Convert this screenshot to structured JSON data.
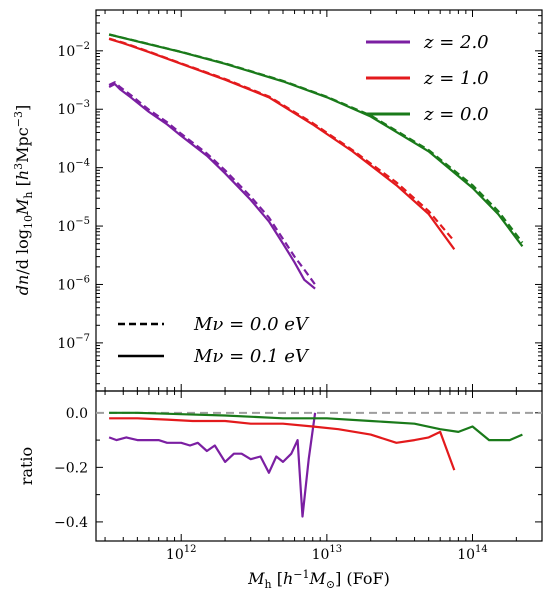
{
  "chart_data": [
    {
      "type": "line",
      "panel": "top",
      "ylabel": "dn/dlog10Mh [h^3Mpc^-3]",
      "xlabel": "",
      "xscale": "log",
      "yscale": "log",
      "xlim": [
        260000000000.0,
        300000000000000.0
      ],
      "ylim": [
        1.5e-08,
        0.05
      ],
      "yticks": [
        {
          "value": 1e-07,
          "label": "10",
          "exp": "−7"
        },
        {
          "value": 1e-06,
          "label": "10",
          "exp": "−6"
        },
        {
          "value": 1e-05,
          "label": "10",
          "exp": "−5"
        },
        {
          "value": 0.0001,
          "label": "10",
          "exp": "−4"
        },
        {
          "value": 0.001,
          "label": "10",
          "exp": "−3"
        },
        {
          "value": 0.01,
          "label": "10",
          "exp": "−2"
        }
      ],
      "series": [
        {
          "name": "z = 2.0",
          "color": "#7b1fa2",
          "style": "solid",
          "x": [
            320000000000.0,
            350000000000.0,
            380000000000.0,
            450000000000.0,
            600000000000.0,
            800000000000.0,
            1000000000000.0,
            1500000000000.0,
            2000000000000.0,
            3000000000000.0,
            4000000000000.0,
            5000000000000.0,
            6000000000000.0,
            7000000000000.0,
            8300000000000.0
          ],
          "y": [
            0.0024,
            0.0027,
            0.0022,
            0.0016,
            0.0009,
            0.00055,
            0.00035,
            0.00016,
            8e-05,
            2.8e-05,
            1.2e-05,
            5e-06,
            2.4e-06,
            1.2e-06,
            8.5e-07
          ]
        },
        {
          "name": "z = 2.0 (Mν = 0.0 eV)",
          "color": "#7b1fa2",
          "style": "dashed",
          "x": [
            320000000000.0,
            350000000000.0,
            380000000000.0,
            450000000000.0,
            600000000000.0,
            800000000000.0,
            1000000000000.0,
            1500000000000.0,
            2000000000000.0,
            3000000000000.0,
            4000000000000.0,
            5000000000000.0,
            6000000000000.0,
            7000000000000.0,
            8300000000000.0
          ],
          "y": [
            0.0026,
            0.0029,
            0.0024,
            0.00175,
            0.00098,
            0.0006,
            0.00038,
            0.000175,
            9e-05,
            3.2e-05,
            1.4e-05,
            6e-06,
            3e-06,
            1.8e-06,
            1e-06
          ]
        },
        {
          "name": "z = 1.0",
          "color": "#e31a1c",
          "style": "solid",
          "x": [
            320000000000.0,
            400000000000.0,
            600000000000.0,
            1000000000000.0,
            2000000000000.0,
            4000000000000.0,
            8000000000000.0,
            15000000000000.0,
            30000000000000.0,
            50000000000000.0,
            75000000000000.0
          ],
          "y": [
            0.016,
            0.0135,
            0.0095,
            0.006,
            0.0032,
            0.0016,
            0.00055,
            0.00019,
            5e-05,
            1.6e-05,
            4e-06
          ]
        },
        {
          "name": "z = 1.0 (Mν = 0.0 eV)",
          "color": "#e31a1c",
          "style": "dashed",
          "x": [
            320000000000.0,
            400000000000.0,
            600000000000.0,
            1000000000000.0,
            2000000000000.0,
            4000000000000.0,
            8000000000000.0,
            15000000000000.0,
            30000000000000.0,
            50000000000000.0,
            75000000000000.0
          ],
          "y": [
            0.0162,
            0.0138,
            0.0097,
            0.0061,
            0.0033,
            0.00165,
            0.00058,
            0.0002,
            5.6e-05,
            1.8e-05,
            5.5e-06
          ]
        },
        {
          "name": "z = 0.0",
          "color": "#1a7a1a",
          "style": "solid",
          "x": [
            320000000000.0,
            500000000000.0,
            1000000000000.0,
            2000000000000.0,
            5000000000000.0,
            10000000000000.0,
            20000000000000.0,
            50000000000000.0,
            100000000000000.0,
            150000000000000.0,
            220000000000000.0
          ],
          "y": [
            0.019,
            0.0145,
            0.0095,
            0.006,
            0.003,
            0.0016,
            0.00075,
            0.00019,
            4.5e-05,
            1.6e-05,
            4.5e-06
          ]
        },
        {
          "name": "z = 0.0 (Mν = 0.0 eV)",
          "color": "#1a7a1a",
          "style": "dashed",
          "x": [
            320000000000.0,
            500000000000.0,
            1000000000000.0,
            2000000000000.0,
            5000000000000.0,
            10000000000000.0,
            20000000000000.0,
            50000000000000.0,
            100000000000000.0,
            150000000000000.0,
            220000000000000.0
          ],
          "y": [
            0.019,
            0.0146,
            0.0096,
            0.0061,
            0.00305,
            0.00163,
            0.00078,
            0.0002,
            5e-05,
            1.8e-05,
            5.2e-06
          ]
        }
      ]
    },
    {
      "type": "line",
      "panel": "bottom",
      "ylabel": "ratio",
      "xlabel": "M_h [h^-1 M_⊙] (FoF)",
      "xscale": "log",
      "xlim": [
        260000000000.0,
        300000000000000.0
      ],
      "ylim": [
        -0.47,
        0.08
      ],
      "yticks": [
        {
          "value": 0.0,
          "label": "0.0"
        },
        {
          "value": -0.2,
          "label": "−0.2"
        },
        {
          "value": -0.4,
          "label": "−0.4"
        }
      ],
      "xticks": [
        {
          "value": 1000000000000.0,
          "label": "10",
          "exp": "12"
        },
        {
          "value": 10000000000000.0,
          "label": "10",
          "exp": "13"
        },
        {
          "value": 100000000000000.0,
          "label": "10",
          "exp": "14"
        }
      ],
      "reference_line": {
        "y": 0.0,
        "color": "#9e9e9e",
        "style": "dashed"
      },
      "series": [
        {
          "name": "z = 2.0",
          "color": "#7b1fa2",
          "x": [
            320000000000.0,
            360000000000.0,
            420000000000.0,
            500000000000.0,
            600000000000.0,
            700000000000.0,
            800000000000.0,
            900000000000.0,
            1000000000000.0,
            1150000000000.0,
            1300000000000.0,
            1500000000000.0,
            1700000000000.0,
            2000000000000.0,
            2300000000000.0,
            2600000000000.0,
            3000000000000.0,
            3500000000000.0,
            4000000000000.0,
            4500000000000.0,
            5000000000000.0,
            5700000000000.0,
            6300000000000.0,
            6800000000000.0,
            7500000000000.0,
            8300000000000.0
          ],
          "y": [
            -0.09,
            -0.1,
            -0.09,
            -0.1,
            -0.1,
            -0.1,
            -0.11,
            -0.11,
            -0.11,
            -0.12,
            -0.11,
            -0.14,
            -0.12,
            -0.18,
            -0.15,
            -0.15,
            -0.17,
            -0.16,
            -0.22,
            -0.16,
            -0.18,
            -0.15,
            -0.1,
            -0.38,
            -0.17,
            0.0
          ]
        },
        {
          "name": "z = 1.0",
          "color": "#e31a1c",
          "x": [
            320000000000.0,
            500000000000.0,
            800000000000.0,
            1200000000000.0,
            2000000000000.0,
            3000000000000.0,
            5000000000000.0,
            8000000000000.0,
            12000000000000.0,
            20000000000000.0,
            30000000000000.0,
            40000000000000.0,
            50000000000000.0,
            60000000000000.0,
            75000000000000.0
          ],
          "y": [
            -0.02,
            -0.02,
            -0.025,
            -0.03,
            -0.03,
            -0.04,
            -0.04,
            -0.05,
            -0.06,
            -0.08,
            -0.11,
            -0.1,
            -0.09,
            -0.07,
            -0.21
          ]
        },
        {
          "name": "z = 0.0",
          "color": "#1a7a1a",
          "x": [
            320000000000.0,
            500000000000.0,
            1000000000000.0,
            2000000000000.0,
            5000000000000.0,
            10000000000000.0,
            20000000000000.0,
            40000000000000.0,
            60000000000000.0,
            80000000000000.0,
            100000000000000.0,
            130000000000000.0,
            180000000000000.0,
            220000000000000.0
          ],
          "y": [
            0.0,
            0.0,
            -0.005,
            -0.01,
            -0.02,
            -0.02,
            -0.03,
            -0.04,
            -0.06,
            -0.07,
            -0.05,
            -0.1,
            -0.1,
            -0.08
          ]
        }
      ]
    }
  ],
  "legend_z": [
    {
      "z": "z = 2.0",
      "color": "#7b1fa2"
    },
    {
      "z": "z = 1.0",
      "color": "#e31a1c"
    },
    {
      "z": "z = 0.0",
      "color": "#1a7a1a"
    }
  ],
  "legend_mnu": [
    {
      "label": "Mν = 0.0 eV",
      "style": "dashed"
    },
    {
      "label": "Mν = 0.1 eV",
      "style": "solid"
    }
  ]
}
